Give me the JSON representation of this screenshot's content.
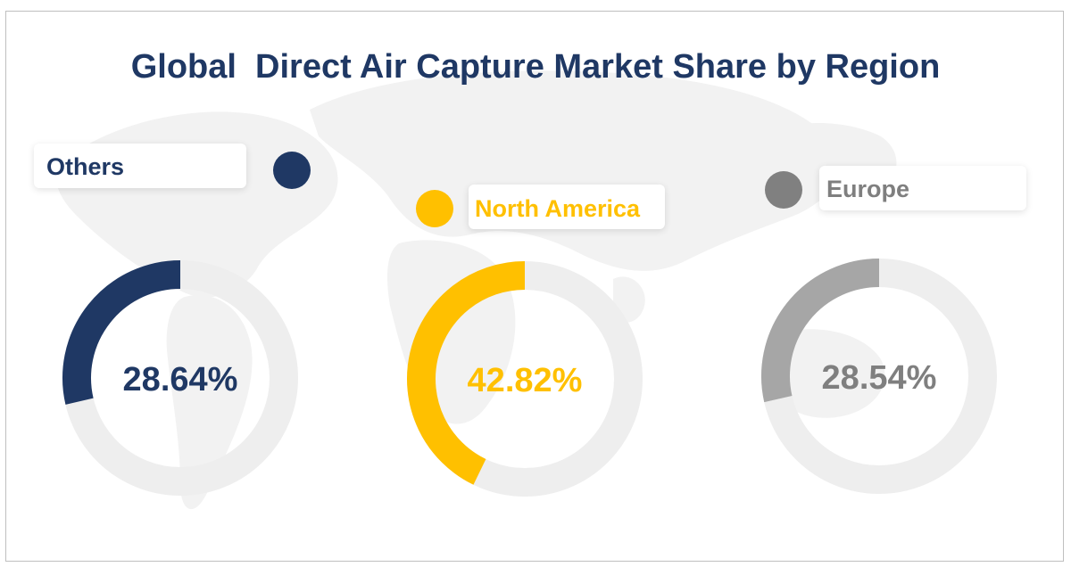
{
  "title": "Global  Direct Air Capture Market Share by Region",
  "chart_data": {
    "type": "pie",
    "title": "Global  Direct Air Capture Market Share by Region",
    "series": [
      {
        "name": "Others",
        "value": 28.64,
        "label": "28.64%",
        "color": "#1f3864"
      },
      {
        "name": "North America",
        "value": 42.82,
        "label": "42.82%",
        "color": "#ffc000"
      },
      {
        "name": "Europe",
        "value": 28.54,
        "label": "28.54%",
        "color": "#a6a6a6"
      }
    ],
    "track_color": "#eeeeee",
    "value_text_colors": [
      "#1f3864",
      "#ffc000",
      "#7f7f7f"
    ]
  }
}
